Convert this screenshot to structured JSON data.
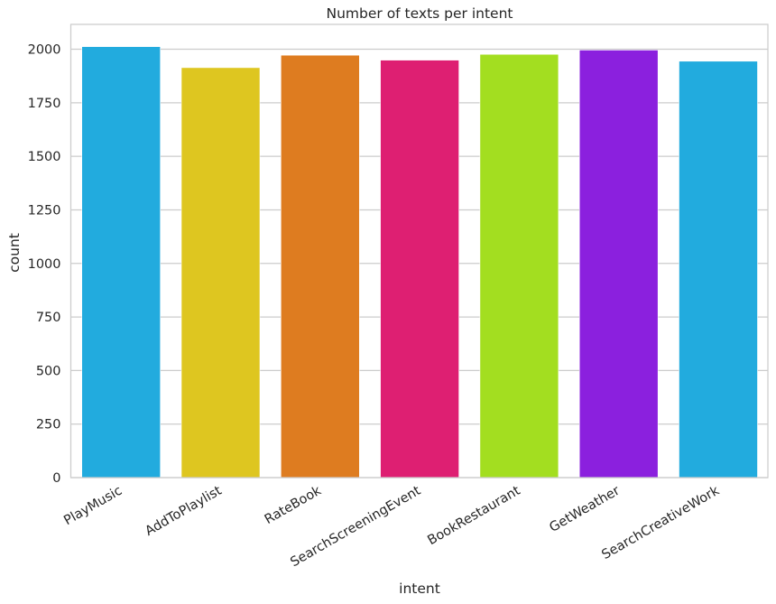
{
  "chart_data": {
    "type": "bar",
    "title": "Number of texts per intent",
    "xlabel": "intent",
    "ylabel": "count",
    "categories": [
      "PlayMusic",
      "AddToPlaylist",
      "RateBook",
      "SearchScreeningEvent",
      "BookRestaurant",
      "GetWeather",
      "SearchCreativeWork"
    ],
    "values": [
      2012,
      1914,
      1972,
      1949,
      1976,
      1996,
      1944
    ],
    "colors": [
      "#22ABDE",
      "#DEC620",
      "#DE7C20",
      "#DE1F72",
      "#A3DE20",
      "#8B20DE",
      "#22ABDE"
    ],
    "ylim": [
      0,
      2110
    ],
    "yticks": [
      0,
      250,
      500,
      750,
      1000,
      1250,
      1500,
      1750,
      2000
    ],
    "grid": true,
    "grid_axis": "y",
    "legend": null
  }
}
